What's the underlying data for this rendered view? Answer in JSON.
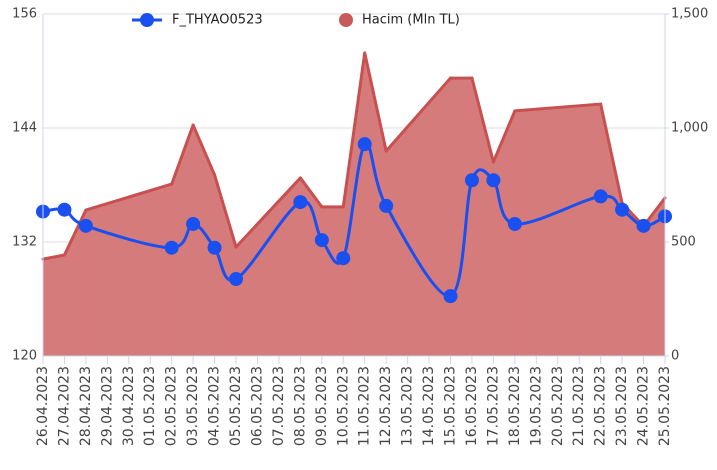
{
  "chart_data": {
    "type": "line",
    "categories": [
      "26.04.2023",
      "27.04.2023",
      "28.04.2023",
      "29.04.2023",
      "30.04.2023",
      "01.05.2023",
      "02.05.2023",
      "03.05.2023",
      "04.05.2023",
      "05.05.2023",
      "06.05.2023",
      "07.05.2023",
      "08.05.2023",
      "09.05.2023",
      "10.05.2023",
      "11.05.2023",
      "12.05.2023",
      "13.05.2023",
      "14.05.2023",
      "15.05.2023",
      "16.05.2023",
      "17.05.2023",
      "18.05.2023",
      "19.05.2023",
      "20.05.2023",
      "21.05.2023",
      "22.05.2023",
      "23.05.2023",
      "24.05.2023",
      "25.05.2023"
    ],
    "series": [
      {
        "name": "F_THYAO0523",
        "color": "#1a4ff0",
        "type": "line",
        "values": [
          135.2,
          135.4,
          133.7,
          null,
          null,
          null,
          131.4,
          133.9,
          131.4,
          128.1,
          null,
          null,
          136.2,
          132.2,
          130.3,
          142.3,
          135.8,
          null,
          null,
          126.3,
          138.5,
          138.5,
          133.9,
          null,
          null,
          null,
          136.8,
          135.4,
          133.7,
          134.7
        ]
      },
      {
        "name": "Hacim (Mln TL)",
        "color": "#c85050",
        "type": "area",
        "axis": "y2",
        "values": [
          425,
          443,
          640,
          null,
          null,
          null,
          754,
          1013,
          794,
          478,
          null,
          null,
          781,
          654,
          654,
          1329,
          899,
          null,
          null,
          1219,
          1219,
          851,
          1075,
          null,
          null,
          null,
          1105,
          671,
          570,
          693
        ]
      }
    ],
    "ylim": [
      120,
      156
    ],
    "yticks": [
      120,
      132,
      144,
      156
    ],
    "y2lim": [
      0,
      1500
    ],
    "y2ticks": [
      0,
      500,
      {
        "value": 1000,
        "label": "1,000"
      },
      {
        "value": 1500,
        "label": "1,500"
      }
    ],
    "grid": true,
    "span_gaps": true
  }
}
